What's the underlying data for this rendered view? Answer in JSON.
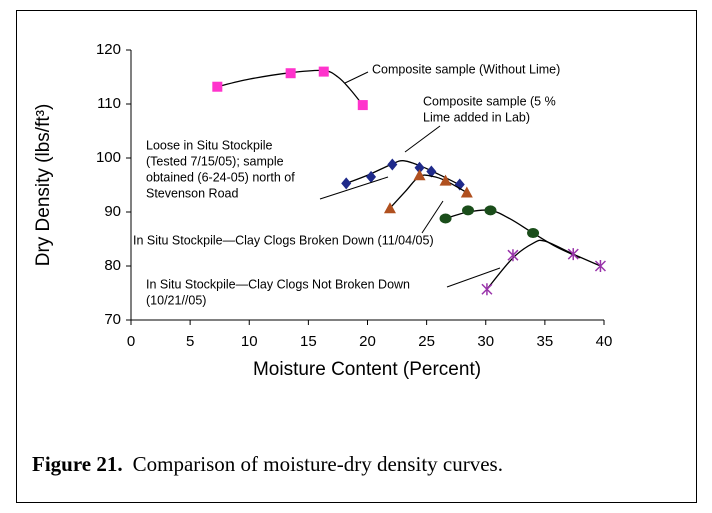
{
  "chart_data": {
    "type": "scatter",
    "xlabel": "Moisture Content (Percent)",
    "ylabel": "Dry Density (lbs/ft³)",
    "xlim": [
      0,
      40
    ],
    "xticks": [
      0,
      5,
      10,
      15,
      20,
      25,
      30,
      35,
      40
    ],
    "ylim": [
      70,
      120
    ],
    "yticks": [
      70,
      80,
      90,
      100,
      110,
      120
    ],
    "grid": false,
    "series": [
      {
        "marker": "square",
        "color": "#ff33cc",
        "x": [
          7.3,
          13.5,
          16.3,
          19.6
        ],
        "values": [
          113.2,
          115.7,
          116.0,
          109.8
        ],
        "fit": {
          "x": [
            7.3,
            10,
            13.5,
            16.3,
            17.5,
            18.5,
            19.6
          ],
          "y": [
            113.2,
            114.6,
            115.8,
            116.2,
            115.0,
            112.8,
            109.8
          ]
        }
      },
      {
        "marker": "diamond",
        "color": "#1f2a8a",
        "x": [
          18.2,
          20.3,
          22.1,
          24.4,
          25.4,
          27.8
        ],
        "values": [
          95.3,
          96.5,
          98.8,
          98.2,
          97.5,
          95.1
        ],
        "fit": {
          "x": [
            18.2,
            20.0,
            22.0,
            23.0,
            24.4,
            26.0,
            28.0
          ],
          "y": [
            95.3,
            96.8,
            98.8,
            99.5,
            98.6,
            97.0,
            94.8
          ]
        }
      },
      {
        "marker": "triangle",
        "color": "#b0501f",
        "x": [
          21.9,
          24.4,
          26.6,
          28.4
        ],
        "values": [
          90.7,
          96.8,
          95.8,
          93.6
        ],
        "fit": {
          "x": [
            21.9,
            23.2,
            24.4,
            25.5,
            26.6,
            28.4
          ],
          "y": [
            90.7,
            93.8,
            96.6,
            96.6,
            95.8,
            93.6
          ]
        }
      },
      {
        "marker": "circle",
        "color": "#1a4d1a",
        "x": [
          26.6,
          28.5,
          30.4,
          34.0
        ],
        "values": [
          88.8,
          90.3,
          90.3,
          86.1
        ],
        "fit": {
          "x": [
            26.6,
            28.5,
            30.4,
            32.0,
            34.0,
            36.0,
            38.0
          ],
          "y": [
            88.8,
            90.0,
            90.3,
            88.8,
            86.1,
            83.5,
            81.5
          ]
        }
      },
      {
        "marker": "star",
        "color": "#9933aa",
        "x": [
          30.1,
          32.3,
          37.4,
          39.7
        ],
        "values": [
          75.7,
          82.0,
          82.2,
          80.0
        ],
        "fit": {
          "x": [
            30.1,
            32.3,
            34.0,
            35.0,
            37.4,
            39.7
          ],
          "y": [
            75.7,
            81.5,
            84.2,
            84.6,
            82.2,
            80.0
          ]
        }
      }
    ],
    "annotations": [
      {
        "lines": [
          "Composite sample (Without Lime)"
        ]
      },
      {
        "lines": [
          "Composite sample (5 %",
          "Lime added in Lab)"
        ]
      },
      {
        "lines": [
          "Loose in Situ Stockpile",
          "(Tested 7/15/05); sample",
          "obtained (6-24-05) north of",
          "Stevenson Road"
        ]
      },
      {
        "lines": [
          "In Situ Stockpile—Clay Clogs Broken Down (11/04/05)"
        ]
      },
      {
        "lines": [
          "In Situ Stockpile—Clay Clogs Not Broken Down",
          "(10/21//05)"
        ]
      }
    ]
  },
  "caption": {
    "label": "Figure 21.",
    "text": "Comparison of moisture-dry density curves."
  }
}
